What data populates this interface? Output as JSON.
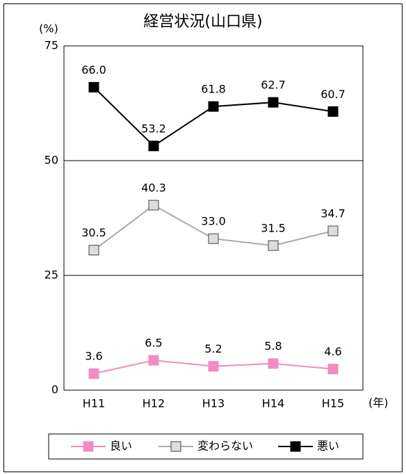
{
  "chart_data": {
    "type": "line",
    "title": "経営状況(山口県)",
    "y_unit": "(%)",
    "x_unit": "(年)",
    "categories": [
      "H11",
      "H12",
      "H13",
      "H14",
      "H15"
    ],
    "series": [
      {
        "name": "良い",
        "color": "#f08cc0",
        "marker_color": "#f08cc0",
        "values": [
          3.6,
          6.5,
          5.2,
          5.8,
          4.6
        ],
        "value_labels": [
          "3.6",
          "6.5",
          "5.2",
          "5.8",
          "4.6"
        ]
      },
      {
        "name": "変わらない",
        "color": "#aaaaaa",
        "marker_color": "#dddddd",
        "values": [
          30.5,
          40.3,
          33.0,
          31.5,
          34.7
        ],
        "value_labels": [
          "30.5",
          "40.3",
          "33.0",
          "31.5",
          "34.7"
        ]
      },
      {
        "name": "悪い",
        "color": "#000000",
        "marker_color": "#000000",
        "values": [
          66.0,
          53.2,
          61.8,
          62.7,
          60.7
        ],
        "value_labels": [
          "66.0",
          "53.2",
          "61.8",
          "62.7",
          "60.7"
        ]
      }
    ],
    "ylim": [
      0,
      75
    ],
    "yticks": [
      0,
      25,
      50,
      75
    ],
    "grid": true,
    "legend": "bottom"
  }
}
